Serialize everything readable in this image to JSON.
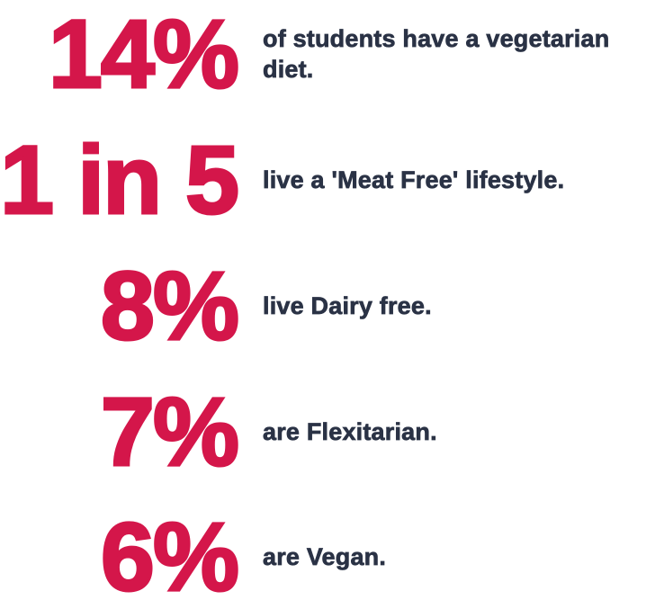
{
  "page": {
    "background": "#FFFFFF"
  },
  "colors": {
    "accent": "#D4164A",
    "text": "#2A3245"
  },
  "stats": [
    {
      "value": "14%",
      "label": "of students have a vegetarian diet."
    },
    {
      "value": "1 in 5",
      "label": "live a 'Meat Free' lifestyle."
    },
    {
      "value": "8%",
      "label": "live Dairy free."
    },
    {
      "value": "7%",
      "label": "are Flexitarian."
    },
    {
      "value": "6%",
      "label": "are Vegan."
    }
  ],
  "chart_data": {
    "type": "table",
    "title": "",
    "categories": [
      "of students have a vegetarian diet.",
      "live a 'Meat Free' lifestyle.",
      "live Dairy free.",
      "are Flexitarian.",
      "are Vegan."
    ],
    "values": [
      14,
      20,
      8,
      7,
      6
    ],
    "value_labels": [
      "14%",
      "1 in 5",
      "8%",
      "7%",
      "6%"
    ],
    "unit": "percent of students",
    "legend_position": "none",
    "grid": false
  }
}
